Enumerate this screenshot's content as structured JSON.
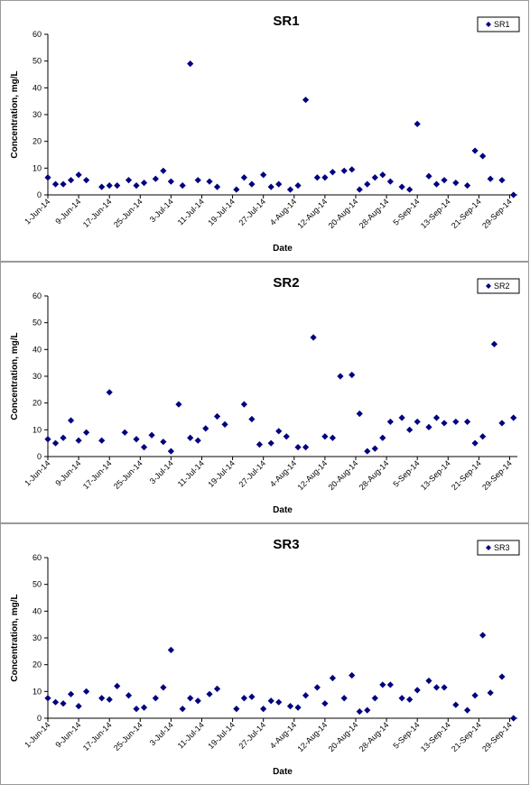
{
  "chart_data": [
    {
      "type": "scatter",
      "title": "SR1",
      "xlabel": "Date",
      "ylabel": "Concentration, mg/L",
      "ylim": [
        0,
        60
      ],
      "yticks": [
        "0",
        "10",
        "20",
        "30",
        "40",
        "50",
        "60"
      ],
      "xlim": [
        "2014-06-01",
        "2014-10-01"
      ],
      "xticks": [
        "1-Jun-14",
        "9-Jun-14",
        "17-Jun-14",
        "25-Jun-14",
        "3-Jul-14",
        "11-Jul-14",
        "19-Jul-14",
        "27-Jul-14",
        "4-Aug-14",
        "12-Aug-14",
        "20-Aug-14",
        "28-Aug-14",
        "5-Sep-14",
        "13-Sep-14",
        "21-Sep-14",
        "29-Sep-14"
      ],
      "grid": false,
      "legend": "top-right",
      "marker_color": "#000080",
      "series": [
        {
          "name": "SR1",
          "x": [
            "2014-06-01",
            "2014-06-03",
            "2014-06-05",
            "2014-06-07",
            "2014-06-09",
            "2014-06-11",
            "2014-06-15",
            "2014-06-17",
            "2014-06-19",
            "2014-06-22",
            "2014-06-24",
            "2014-06-26",
            "2014-06-29",
            "2014-07-01",
            "2014-07-03",
            "2014-07-06",
            "2014-07-08",
            "2014-07-10",
            "2014-07-13",
            "2014-07-15",
            "2014-07-20",
            "2014-07-22",
            "2014-07-24",
            "2014-07-27",
            "2014-07-29",
            "2014-07-31",
            "2014-08-03",
            "2014-08-05",
            "2014-08-07",
            "2014-08-10",
            "2014-08-12",
            "2014-08-14",
            "2014-08-17",
            "2014-08-19",
            "2014-08-21",
            "2014-08-23",
            "2014-08-25",
            "2014-08-27",
            "2014-08-29",
            "2014-09-01",
            "2014-09-03",
            "2014-09-05",
            "2014-09-08",
            "2014-09-10",
            "2014-09-12",
            "2014-09-15",
            "2014-09-18",
            "2014-09-20",
            "2014-09-22",
            "2014-09-24",
            "2014-09-27",
            "2014-09-30"
          ],
          "y": [
            6.5,
            4,
            4,
            5.5,
            7.5,
            5.5,
            3,
            3.5,
            3.5,
            5.5,
            3.5,
            4.5,
            6,
            9,
            5,
            3.5,
            49,
            5.5,
            5,
            3,
            2,
            6.5,
            4,
            7.5,
            3,
            4,
            2,
            3.5,
            35.5,
            6.5,
            6.5,
            8.5,
            9,
            9.5,
            2,
            4,
            6.5,
            7.5,
            5,
            3,
            2,
            26.5,
            7,
            4,
            5.5,
            4.5,
            3.5,
            16.5,
            14.5,
            6,
            5.5,
            0
          ]
        }
      ]
    },
    {
      "type": "scatter",
      "title": "SR2",
      "xlabel": "Date",
      "ylabel": "Concentration, mg/L",
      "ylim": [
        0,
        60
      ],
      "yticks": [
        "0",
        "10",
        "20",
        "30",
        "40",
        "50",
        "60"
      ],
      "xlim": [
        "2014-06-01",
        "2014-10-01"
      ],
      "xticks": [
        "1-Jun-14",
        "9-Jun-14",
        "17-Jun-14",
        "25-Jun-14",
        "3-Jul-14",
        "11-Jul-14",
        "19-Jul-14",
        "27-Jul-14",
        "4-Aug-14",
        "12-Aug-14",
        "20-Aug-14",
        "28-Aug-14",
        "5-Sep-14",
        "13-Sep-14",
        "21-Sep-14",
        "29-Sep-14"
      ],
      "grid": false,
      "legend": "top-right",
      "marker_color": "#000080",
      "series": [
        {
          "name": "SR2",
          "x": [
            "2014-06-01",
            "2014-06-03",
            "2014-06-05",
            "2014-06-07",
            "2014-06-09",
            "2014-06-11",
            "2014-06-15",
            "2014-06-17",
            "2014-06-21",
            "2014-06-24",
            "2014-06-26",
            "2014-06-28",
            "2014-07-01",
            "2014-07-03",
            "2014-07-05",
            "2014-07-08",
            "2014-07-10",
            "2014-07-12",
            "2014-07-15",
            "2014-07-17",
            "2014-07-22",
            "2014-07-24",
            "2014-07-26",
            "2014-07-29",
            "2014-07-31",
            "2014-08-02",
            "2014-08-05",
            "2014-08-07",
            "2014-08-09",
            "2014-08-12",
            "2014-08-14",
            "2014-08-16",
            "2014-08-19",
            "2014-08-21",
            "2014-08-23",
            "2014-08-25",
            "2014-08-27",
            "2014-08-29",
            "2014-09-01",
            "2014-09-03",
            "2014-09-05",
            "2014-09-08",
            "2014-09-10",
            "2014-09-12",
            "2014-09-15",
            "2014-09-18",
            "2014-09-20",
            "2014-09-22",
            "2014-09-25",
            "2014-09-27",
            "2014-09-30"
          ],
          "y": [
            6.5,
            5,
            7,
            13.5,
            6,
            9,
            6,
            24,
            9,
            6.5,
            3.5,
            8,
            5.5,
            2,
            19.5,
            7,
            6,
            10.5,
            15,
            12,
            19.5,
            14,
            4.5,
            5,
            9.5,
            7.5,
            3.5,
            3.5,
            44.5,
            7.5,
            7,
            30,
            30.5,
            16,
            2,
            3,
            7,
            13,
            14.5,
            10,
            13,
            11,
            14.5,
            12.5,
            13,
            13,
            5,
            7.5,
            42,
            12.5,
            14.5
          ]
        }
      ]
    },
    {
      "type": "scatter",
      "title": "SR3",
      "xlabel": "Date",
      "ylabel": "Concentration, mg/L",
      "ylim": [
        0,
        60
      ],
      "yticks": [
        "0",
        "10",
        "20",
        "30",
        "40",
        "50",
        "60"
      ],
      "xlim": [
        "2014-06-01",
        "2014-10-01"
      ],
      "xticks": [
        "1-Jun-14",
        "9-Jun-14",
        "17-Jun-14",
        "25-Jun-14",
        "3-Jul-14",
        "11-Jul-14",
        "19-Jul-14",
        "27-Jul-14",
        "4-Aug-14",
        "12-Aug-14",
        "20-Aug-14",
        "28-Aug-14",
        "5-Sep-14",
        "13-Sep-14",
        "21-Sep-14",
        "29-Sep-14"
      ],
      "grid": false,
      "legend": "top-right",
      "marker_color": "#000080",
      "series": [
        {
          "name": "SR3",
          "x": [
            "2014-06-01",
            "2014-06-03",
            "2014-06-05",
            "2014-06-07",
            "2014-06-09",
            "2014-06-11",
            "2014-06-15",
            "2014-06-17",
            "2014-06-19",
            "2014-06-22",
            "2014-06-24",
            "2014-06-26",
            "2014-06-29",
            "2014-07-01",
            "2014-07-03",
            "2014-07-06",
            "2014-07-08",
            "2014-07-10",
            "2014-07-13",
            "2014-07-15",
            "2014-07-20",
            "2014-07-22",
            "2014-07-24",
            "2014-07-27",
            "2014-07-29",
            "2014-07-31",
            "2014-08-03",
            "2014-08-05",
            "2014-08-07",
            "2014-08-10",
            "2014-08-12",
            "2014-08-14",
            "2014-08-17",
            "2014-08-19",
            "2014-08-21",
            "2014-08-23",
            "2014-08-25",
            "2014-08-27",
            "2014-08-29",
            "2014-09-01",
            "2014-09-03",
            "2014-09-05",
            "2014-09-08",
            "2014-09-10",
            "2014-09-12",
            "2014-09-15",
            "2014-09-18",
            "2014-09-20",
            "2014-09-22",
            "2014-09-24",
            "2014-09-27",
            "2014-09-30"
          ],
          "y": [
            7.5,
            6,
            5.5,
            9,
            4.5,
            10,
            7.5,
            7,
            12,
            8.5,
            3.5,
            4,
            7.5,
            11.5,
            25.5,
            3.5,
            7.5,
            6.5,
            9,
            11,
            3.5,
            7.5,
            8,
            3.5,
            6.5,
            6,
            4.5,
            4,
            8.5,
            11.5,
            5.5,
            15,
            7.5,
            16,
            2.5,
            3,
            7.5,
            12.5,
            12.5,
            7.5,
            7,
            10.5,
            14,
            11.5,
            11.5,
            5,
            3,
            8.5,
            31,
            9.5,
            15.5,
            0
          ]
        }
      ]
    }
  ]
}
